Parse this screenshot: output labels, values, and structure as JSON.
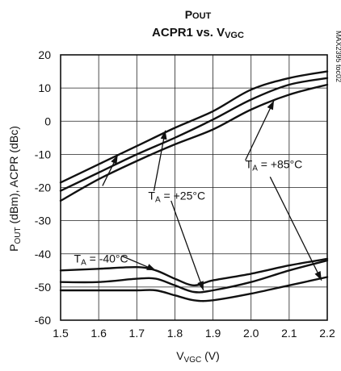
{
  "chart_data": {
    "type": "line",
    "title_line1": "POUT",
    "title_line2": "ACPR1 vs. VVGC",
    "title_main1": "P",
    "title_sub1": "OUT",
    "title_main2": "ACPR1 vs. V",
    "title_sub2": "VGC",
    "xlabel_main": "V",
    "xlabel_sub": "VGC",
    "xlabel_tail": " (V)",
    "ylabel_p": "P",
    "ylabel_sub": "OUT",
    "ylabel_tail": " (dBm), ACPR (dBc)",
    "side_code": "MAX2395 toc02",
    "xlim": [
      1.5,
      2.2
    ],
    "ylim": [
      -60,
      20
    ],
    "x_ticks": [
      "1.5",
      "1.6",
      "1.7",
      "1.8",
      "1.9",
      "2.0",
      "2.1",
      "2.2"
    ],
    "y_ticks": [
      "20",
      "10",
      "0",
      "-10",
      "-20",
      "-30",
      "-40",
      "-50",
      "-60"
    ],
    "grid": true,
    "series": [
      {
        "group": "pout",
        "temp": "-40°C",
        "x": [
          1.5,
          1.6,
          1.7,
          1.8,
          1.9,
          2.0,
          2.1,
          2.2
        ],
        "y": [
          -18.5,
          -13,
          -7.5,
          -2,
          3,
          9.5,
          13,
          15
        ]
      },
      {
        "group": "pout",
        "temp": "+25°C",
        "x": [
          1.5,
          1.6,
          1.7,
          1.8,
          1.9,
          2.0,
          2.1,
          2.2
        ],
        "y": [
          -21,
          -15.5,
          -10,
          -5,
          0.5,
          6.5,
          11,
          13
        ]
      },
      {
        "group": "pout",
        "temp": "+85°C",
        "x": [
          1.5,
          1.6,
          1.7,
          1.8,
          1.9,
          2.0,
          2.1,
          2.2
        ],
        "y": [
          -24,
          -17.5,
          -12,
          -7,
          -2.5,
          3.5,
          8,
          11
        ]
      },
      {
        "group": "acpr",
        "temp": "-40°C",
        "x": [
          1.5,
          1.6,
          1.7,
          1.75,
          1.8,
          1.85,
          1.9,
          2.0,
          2.1,
          2.2
        ],
        "y": [
          -45,
          -44.5,
          -44,
          -45,
          -47.5,
          -49.5,
          -48,
          -46,
          -43.5,
          -41.5
        ]
      },
      {
        "group": "acpr",
        "temp": "+25°C",
        "x": [
          1.5,
          1.6,
          1.7,
          1.75,
          1.8,
          1.85,
          1.9,
          2.0,
          2.1,
          2.2
        ],
        "y": [
          -48.5,
          -48.5,
          -47.5,
          -47.5,
          -49.5,
          -51.5,
          -51,
          -48.5,
          -45,
          -42
        ]
      },
      {
        "group": "acpr",
        "temp": "+85°C",
        "x": [
          1.5,
          1.6,
          1.7,
          1.75,
          1.8,
          1.85,
          1.9,
          2.0,
          2.1,
          2.2
        ],
        "y": [
          -51,
          -51,
          -51,
          -51,
          -52.5,
          -54,
          -54,
          -52,
          -49.5,
          -47
        ]
      }
    ],
    "annotations": [
      {
        "id": "m40",
        "main": "T",
        "sub": "A",
        "tail": " = -40°C",
        "tx": 1.535,
        "ty": -42.6
      },
      {
        "id": "p25",
        "main": "T",
        "sub": "A",
        "tail": " = +25°C",
        "tx": 1.73,
        "ty": -23.7
      },
      {
        "id": "p85",
        "main": "T",
        "sub": "A",
        "tail": " = +85°C",
        "tx": 1.985,
        "ty": -14.2
      }
    ],
    "arrows": [
      {
        "from": [
          1.61,
          -19.5
        ],
        "to": [
          1.65,
          -10.2
        ]
      },
      {
        "from": [
          1.66,
          -40.6
        ],
        "to": [
          1.75,
          -45.0
        ]
      },
      {
        "from": [
          1.745,
          -21.0
        ],
        "to": [
          1.775,
          -2.8
        ]
      },
      {
        "from": [
          1.79,
          -24.0
        ],
        "to": [
          1.875,
          -51.0
        ]
      },
      {
        "from": [
          1.985,
          -11.8
        ],
        "to": [
          2.06,
          6.2
        ]
      },
      {
        "from": [
          2.05,
          -16.8
        ],
        "to": [
          2.185,
          -48.0
        ]
      }
    ]
  }
}
